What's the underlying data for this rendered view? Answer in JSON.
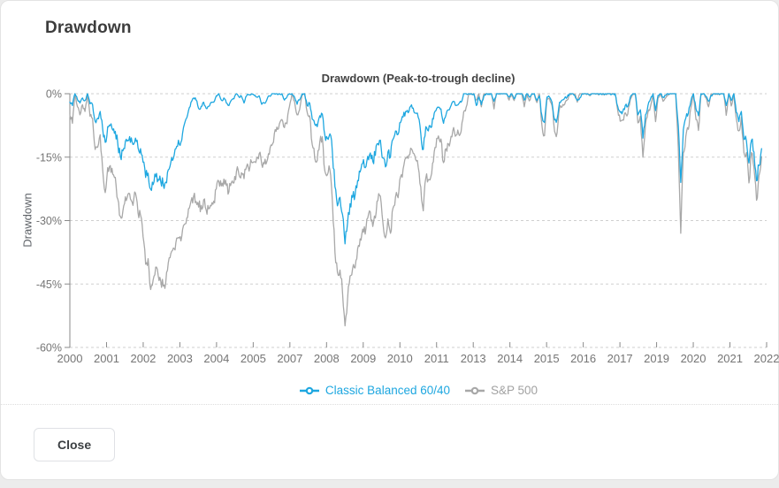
{
  "modal": {
    "title": "Drawdown",
    "close_label": "Close"
  },
  "colors": {
    "accent_blue": "#1ea7e0",
    "series_gray": "#a8a8a8",
    "grid": "#cfcfcf",
    "axis_line": "#8a8a8a",
    "axis_text": "#757575",
    "title_text": "#424242",
    "legend_gray_text": "#a2a2a2",
    "card_bg": "#ffffff",
    "page_bg": "#ececec"
  },
  "chart_data": {
    "type": "line",
    "title": "Drawdown (Peak-to-trough decline)",
    "ylabel": "Drawdown",
    "xlabel": "",
    "grid": "dashed-horizontal",
    "legend_position": "bottom",
    "ylim": [
      -60,
      0
    ],
    "y_ticks": [
      {
        "label": "0%",
        "value": 0
      },
      {
        "label": "-15%",
        "value": -15
      },
      {
        "label": "-30%",
        "value": -30
      },
      {
        "label": "-45%",
        "value": -45
      },
      {
        "label": "-60%",
        "value": -60
      }
    ],
    "x_start_year": 2000,
    "x_span_years": 23,
    "x_points_per_year": 12,
    "x_tick_labels": [
      "2000",
      "2001",
      "2002",
      "2003",
      "2004",
      "2005",
      "2007",
      "2008",
      "2009",
      "2010",
      "2011",
      "2013",
      "2014",
      "2015",
      "2016",
      "2017",
      "2019",
      "2020",
      "2021",
      "2022"
    ],
    "series": [
      {
        "name": "Classic Balanced 60/40",
        "color": "#1ea7e0",
        "values": [
          -2,
          -2.8,
          0,
          -1.4,
          -2.2,
          -1,
          -1.6,
          0,
          -2.4,
          -2.6,
          -6.5,
          -5.8,
          -4.2,
          -8.3,
          -11.5,
          -7.8,
          -7.5,
          -8.6,
          -8.9,
          -11.8,
          -14.8,
          -13.5,
          -11.2,
          -11,
          -11.5,
          -12,
          -10.5,
          -12.8,
          -13,
          -16.2,
          -19.8,
          -18.8,
          -22.6,
          -21.5,
          -19.6,
          -20.3,
          -20.8,
          -21.5,
          -20.9,
          -18,
          -16.2,
          -15.3,
          -13,
          -11,
          -11.5,
          -8,
          -6,
          -4,
          -2,
          -1,
          -1.5,
          -3.5,
          -3,
          -2,
          -3.5,
          -3,
          -2,
          -2,
          -0.5,
          0,
          -1.5,
          -1,
          -2.2,
          -2.8,
          -1.5,
          -1.2,
          0,
          -0.8,
          -0.6,
          -2.2,
          -0.5,
          -0.3,
          0,
          -0.4,
          -0.8,
          -0.5,
          -2.5,
          -2.2,
          -1.5,
          -0.5,
          0,
          0,
          0,
          0,
          0,
          -1.5,
          -0.8,
          0,
          0,
          -0.8,
          -2.5,
          -1.5,
          0,
          0,
          -2.8,
          -2.2,
          -6,
          -7.2,
          -7.8,
          -5.2,
          -4.8,
          -9.8,
          -10.5,
          -9.5,
          -13.8,
          -22,
          -26.5,
          -24.5,
          -28.5,
          -35.5,
          -30.5,
          -26,
          -24.5,
          -24,
          -20.5,
          -18.5,
          -16.5,
          -17.5,
          -14.8,
          -14,
          -16,
          -14.6,
          -11.8,
          -11,
          -15.2,
          -17.3,
          -13.8,
          -15,
          -10.8,
          -8.8,
          -9.6,
          -6.8,
          -5.5,
          -4.2,
          -4.5,
          -3,
          -3.4,
          -4.6,
          -5.6,
          -9.5,
          -13.2,
          -7.8,
          -8.8,
          -8,
          -6,
          -4,
          -3.2,
          -3.6,
          -7,
          -5,
          -3.8,
          -2.8,
          -1.8,
          -2.8,
          -2.4,
          -2,
          0,
          0,
          0,
          0,
          0,
          -2.8,
          -0.8,
          -2.6,
          -0.6,
          0,
          0,
          0,
          -1.8,
          0,
          0,
          0,
          0,
          0,
          -0.8,
          0,
          -1.2,
          0,
          0,
          0,
          -1.5,
          0,
          -0.8,
          0,
          0,
          -1.6,
          -0.5,
          -5.2,
          -6.8,
          -0.8,
          -0.8,
          -2,
          -6.2,
          -6,
          -2,
          -1.5,
          -1,
          -0.8,
          0,
          0,
          -0.4,
          -1.6,
          -1,
          0,
          0,
          0,
          -0.2,
          0,
          0,
          0,
          0,
          0,
          0,
          0,
          0,
          0,
          0,
          -3,
          -4.4,
          -4.2,
          -2.8,
          -3,
          -0.8,
          0,
          0,
          -5,
          -3.8,
          -10.5,
          -5,
          -2.8,
          -1.2,
          0,
          -4,
          -0.4,
          0,
          -0.8,
          -0.4,
          0,
          0,
          0,
          0,
          -7.5,
          -21,
          -8.5,
          -5.8,
          -4.6,
          -1.8,
          0,
          -3.6,
          -5.2,
          0,
          0,
          -0.6,
          -1.8,
          -0.4,
          0,
          0,
          0,
          0,
          0,
          -2.8,
          0,
          -1.6,
          0,
          -4.4,
          -6.6,
          -4.2,
          -10.8,
          -11.2,
          -16.4,
          -11,
          -13.8,
          -20.6,
          -17,
          -13
        ]
      },
      {
        "name": "S&P 500",
        "color": "#a8a8a8",
        "values": [
          -5.1,
          -7,
          0,
          -3.1,
          -5,
          -2.6,
          -4.2,
          0,
          -5.3,
          -5.8,
          -13.2,
          -12.7,
          -9.7,
          -17.9,
          -23.4,
          -17.5,
          -17,
          -19,
          -19.8,
          -24.9,
          -29,
          -27.7,
          -24.4,
          -23.8,
          -24.9,
          -26.4,
          -23.5,
          -28.2,
          -28.7,
          -33.8,
          -40.3,
          -39,
          -46.3,
          -44,
          -41,
          -43,
          -44.3,
          -45.5,
          -44.5,
          -40,
          -37.8,
          -36.5,
          -35.2,
          -34,
          -34.8,
          -31.2,
          -30.7,
          -27.2,
          -25.4,
          -24.3,
          -25.5,
          -26.8,
          -26.4,
          -25.1,
          -27.5,
          -27.2,
          -26.5,
          -25.4,
          -22.5,
          -20.7,
          -21.8,
          -20.2,
          -21.7,
          -23.2,
          -21,
          -21.1,
          -18.4,
          -19.2,
          -18.7,
          -20.1,
          -17.2,
          -18.3,
          -16.2,
          -16.1,
          -15.2,
          -14.2,
          -16.7,
          -16.6,
          -16.1,
          -14.3,
          -12.2,
          -9.4,
          -7.9,
          -7.1,
          -6.1,
          -8,
          -7.1,
          -3,
          0,
          -1.8,
          -5,
          -3.8,
          -0.3,
          0,
          -4.4,
          -5.2,
          -12,
          -15.2,
          -15.8,
          -11.4,
          -10.2,
          -18.3,
          -19.2,
          -18,
          -25.4,
          -37.5,
          -42.2,
          -41.7,
          -46.8,
          -54.9,
          -48.5,
          -43.1,
          -41.3,
          -41.2,
          -36.6,
          -34.3,
          -32,
          -33.2,
          -29.4,
          -28,
          -31.4,
          -29.4,
          -25.3,
          -24.2,
          -30.4,
          -34.1,
          -29.6,
          -33,
          -27.1,
          -24.4,
          -24.6,
          -19.6,
          -17.8,
          -15.2,
          -15.3,
          -12.9,
          -14.1,
          -15.6,
          -17.4,
          -22.1,
          -27.7,
          -19.9,
          -20.3,
          -19.6,
          -16.1,
          -12.7,
          -10,
          -10.7,
          -16.3,
          -13,
          -11.9,
          -10.1,
          -8,
          -9.8,
          -9.5,
          -8.9,
          -4.3,
          -3.2,
          0,
          0,
          0,
          -1.5,
          0,
          -3.1,
          0,
          0,
          0,
          0,
          -3.6,
          0,
          0,
          0,
          0,
          0,
          -1.5,
          0,
          -1.6,
          0,
          0,
          0,
          -3.1,
          0,
          -1.7,
          0,
          0,
          -2.1,
          0,
          -7.5,
          -9.9,
          -1.1,
          -1.1,
          -2.8,
          -8.9,
          -9.3,
          -3.3,
          -3.1,
          -2.5,
          -1.5,
          0,
          0,
          -0.1,
          -2,
          0,
          0,
          0,
          0,
          -0.5,
          0,
          0,
          0,
          0,
          -0.2,
          0,
          0,
          0,
          0,
          0,
          -3.9,
          -6.5,
          -6.2,
          -4.5,
          -4.8,
          -1.4,
          0,
          0,
          -6.9,
          -5.3,
          -15,
          -7.2,
          -4.4,
          -3,
          0,
          -6.6,
          -1,
          0,
          -1.8,
          -1,
          0,
          0,
          0,
          -0.2,
          -12.8,
          -33,
          -14,
          -10.1,
          -8.4,
          -3.4,
          0,
          -6.1,
          -8.7,
          0,
          0,
          -1,
          -3.1,
          0,
          0,
          0,
          0,
          0,
          0,
          -5.1,
          0,
          -2.9,
          0,
          -5.9,
          -8.8,
          -5.5,
          -13.9,
          -13.9,
          -21.1,
          -13.9,
          -17.5,
          -25.2,
          -19.3,
          -14.9
        ]
      }
    ]
  }
}
